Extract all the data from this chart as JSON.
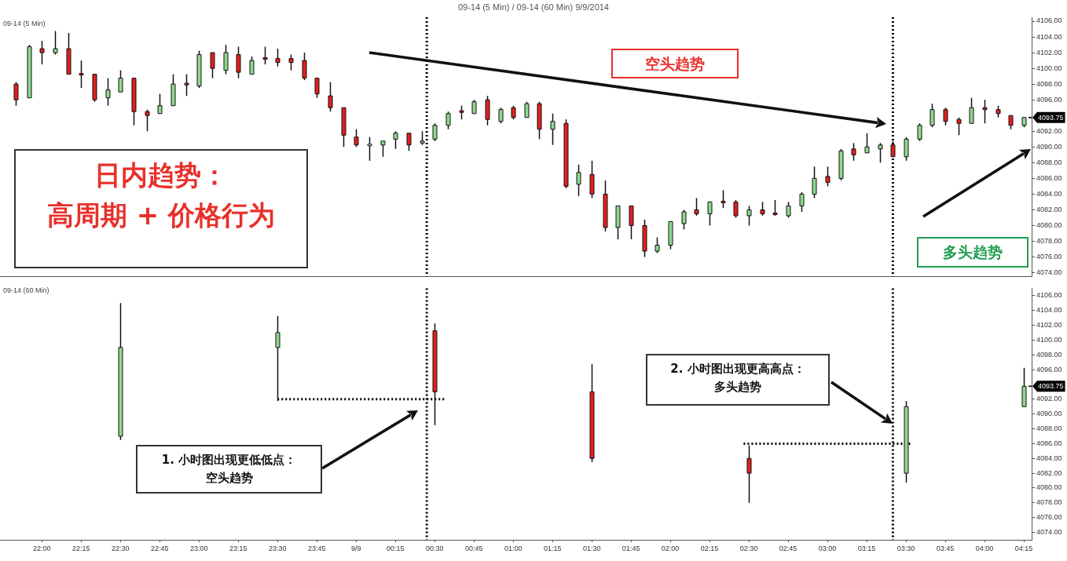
{
  "chart_data": [
    {
      "type": "candlestick",
      "title": "09-14 (5 Min) / 09-14 (60 Min)  9/9/2014",
      "subtitle": "09-14 (5 Min)",
      "xlim": [
        "2014-09-08T21:44",
        "2014-09-09T04:18"
      ],
      "ylim": [
        4073.5,
        4106.5
      ],
      "yticks": [
        {
          "value": 4074,
          "label": "4074.00"
        },
        {
          "value": 4076,
          "label": "4076.00"
        },
        {
          "value": 4078,
          "label": "4078.00"
        },
        {
          "value": 4080,
          "label": "4080.00"
        },
        {
          "value": 4082,
          "label": "4082.00"
        },
        {
          "value": 4084,
          "label": "4084.00"
        },
        {
          "value": 4086,
          "label": "4086.00"
        },
        {
          "value": 4088,
          "label": "4088.00"
        },
        {
          "value": 4090,
          "label": "4090.00"
        },
        {
          "value": 4092,
          "label": "4092.00"
        },
        {
          "value": 4096,
          "label": "4096.00"
        },
        {
          "value": 4098,
          "label": "4098.00"
        },
        {
          "value": 4100,
          "label": "4100.00"
        },
        {
          "value": 4102,
          "label": "4102.00"
        },
        {
          "value": 4104,
          "label": "4104.00"
        },
        {
          "value": 4106,
          "label": "4106.00"
        }
      ],
      "tick_labels": "y",
      "grid": false,
      "legend": false,
      "series": [
        {
          "type": "candlestick",
          "x": [
            "2014-09-08T21:50",
            "2014-09-08T21:55",
            "2014-09-08T22:00",
            "2014-09-08T22:05",
            "2014-09-08T22:10",
            "2014-09-08T22:15",
            "2014-09-08T22:20",
            "2014-09-08T22:25",
            "2014-09-08T22:30",
            "2014-09-08T22:35",
            "2014-09-08T22:40",
            "2014-09-08T22:45",
            "2014-09-08T22:50",
            "2014-09-08T22:55",
            "2014-09-08T23:00",
            "2014-09-08T23:05",
            "2014-09-08T23:10",
            "2014-09-08T23:15",
            "2014-09-08T23:20",
            "2014-09-08T23:25",
            "2014-09-08T23:30",
            "2014-09-08T23:35",
            "2014-09-08T23:40",
            "2014-09-08T23:45",
            "2014-09-08T23:50",
            "2014-09-08T23:55",
            "2014-09-09T00:00",
            "2014-09-09T00:05",
            "2014-09-09T00:10",
            "2014-09-09T00:15",
            "2014-09-09T00:20",
            "2014-09-09T00:25",
            "2014-09-09T00:30",
            "2014-09-09T00:35",
            "2014-09-09T00:40",
            "2014-09-09T00:45",
            "2014-09-09T00:50",
            "2014-09-09T00:55",
            "2014-09-09T01:00",
            "2014-09-09T01:05",
            "2014-09-09T01:10",
            "2014-09-09T01:15",
            "2014-09-09T01:20",
            "2014-09-09T01:25",
            "2014-09-09T01:30",
            "2014-09-09T01:35",
            "2014-09-09T01:40",
            "2014-09-09T01:45",
            "2014-09-09T01:50",
            "2014-09-09T01:55",
            "2014-09-09T02:00",
            "2014-09-09T02:05",
            "2014-09-09T02:10",
            "2014-09-09T02:15",
            "2014-09-09T02:20",
            "2014-09-09T02:25",
            "2014-09-09T02:30",
            "2014-09-09T02:35",
            "2014-09-09T02:40",
            "2014-09-09T02:45",
            "2014-09-09T02:50",
            "2014-09-09T02:55",
            "2014-09-09T03:00",
            "2014-09-09T03:05",
            "2014-09-09T03:10",
            "2014-09-09T03:15",
            "2014-09-09T03:20",
            "2014-09-09T03:25",
            "2014-09-09T03:30",
            "2014-09-09T03:35",
            "2014-09-09T03:40",
            "2014-09-09T03:45",
            "2014-09-09T03:50",
            "2014-09-09T03:55",
            "2014-09-09T04:00",
            "2014-09-09T04:05",
            "2014-09-09T04:10",
            "2014-09-09T04:15"
          ],
          "ohlc": [
            [
              4098,
              4098.25,
              4095.25,
              4096
            ],
            [
              4096.25,
              4103,
              4096.25,
              4102.75
            ],
            [
              4102.5,
              4103.5,
              4100.5,
              4102
            ],
            [
              4102,
              4104.75,
              4101.75,
              4102.5
            ],
            [
              4102.5,
              4104.5,
              4099.25,
              4099.25
            ],
            [
              4099.25,
              4101,
              4097.5,
              4099.25
            ],
            [
              4099.25,
              4099.25,
              4095.75,
              4096
            ],
            [
              4096.25,
              4098.75,
              4095.25,
              4097.25
            ],
            [
              4097,
              4099.75,
              4097,
              4098.75
            ],
            [
              4098.75,
              4098.75,
              4092.75,
              4094.5
            ],
            [
              4094.5,
              4094.75,
              4092,
              4094
            ],
            [
              4094.25,
              4096.75,
              4094.25,
              4095.25
            ],
            [
              4095.25,
              4099.25,
              4095.25,
              4098
            ],
            [
              4098,
              4099.25,
              4096.5,
              4098
            ],
            [
              4097.75,
              4102.25,
              4097.5,
              4101.75
            ],
            [
              4102,
              4102,
              4098.75,
              4100
            ],
            [
              4099.75,
              4103,
              4099.25,
              4102
            ],
            [
              4101.75,
              4102.75,
              4098.75,
              4099.5
            ],
            [
              4099.25,
              4101.5,
              4099.25,
              4101
            ],
            [
              4101.25,
              4102.75,
              4100.5,
              4101.25
            ],
            [
              4101.25,
              4102.5,
              4100.25,
              4100.75
            ],
            [
              4101.25,
              4101.75,
              4099.75,
              4100.75
            ],
            [
              4101,
              4102,
              4098.5,
              4098.75
            ],
            [
              4098.75,
              4098.75,
              4096.25,
              4096.75
            ],
            [
              4096.5,
              4098.25,
              4094.5,
              4095
            ],
            [
              4095,
              4095,
              4090,
              4091.5
            ],
            [
              4091.25,
              4092.25,
              4090,
              4090.25
            ],
            [
              4090.25,
              4091.25,
              4088.25,
              4090.25
            ],
            [
              4090.25,
              4090.75,
              4088.75,
              4090.75
            ],
            [
              4091,
              4092,
              4089.75,
              4091.75
            ],
            [
              4091.75,
              4091.75,
              4089.5,
              4090.25
            ],
            [
              4090.5,
              4092,
              4090.25,
              4090.75
            ],
            [
              4091,
              4093,
              4090.75,
              4092.75
            ],
            [
              4092.75,
              4094.5,
              4092.25,
              4094.25
            ],
            [
              4094.5,
              4095.25,
              4093.5,
              4094.5
            ],
            [
              4094.25,
              4096,
              4094.25,
              4095.75
            ],
            [
              4096,
              4096.5,
              4092.75,
              4093.5
            ],
            [
              4093.25,
              4095,
              4093,
              4094.75
            ],
            [
              4095,
              4095.25,
              4093.5,
              4093.75
            ],
            [
              4093.75,
              4095.75,
              4093.75,
              4095.5
            ],
            [
              4095.5,
              4095.75,
              4091,
              4092.25
            ],
            [
              4092.25,
              4094.25,
              4090.25,
              4093.25
            ],
            [
              4093,
              4093.5,
              4084.75,
              4085
            ],
            [
              4085.25,
              4087.75,
              4083.75,
              4086.75
            ],
            [
              4086.5,
              4088.25,
              4083.5,
              4084
            ],
            [
              4084,
              4085.75,
              4079.25,
              4079.75
            ],
            [
              4079.75,
              4082.5,
              4078.25,
              4082.5
            ],
            [
              4082.5,
              4082.5,
              4078.25,
              4080
            ],
            [
              4080,
              4080.75,
              4076,
              4076.75
            ],
            [
              4076.75,
              4078.5,
              4076.5,
              4077.5
            ],
            [
              4077.5,
              4080.5,
              4077,
              4080.5
            ],
            [
              4080.25,
              4082,
              4079.5,
              4081.75
            ],
            [
              4082,
              4083.5,
              4081.25,
              4081.5
            ],
            [
              4081.5,
              4083,
              4080,
              4083
            ],
            [
              4083,
              4084.5,
              4082.25,
              4083
            ],
            [
              4083,
              4083.25,
              4081,
              4081.25
            ],
            [
              4081.25,
              4082.5,
              4080,
              4082
            ],
            [
              4082,
              4083,
              4081.25,
              4081.5
            ],
            [
              4081.5,
              4083.25,
              4081.25,
              4081.5
            ],
            [
              4081.25,
              4083,
              4081,
              4082.5
            ],
            [
              4082.5,
              4084.25,
              4081.75,
              4084
            ],
            [
              4084,
              4087.5,
              4083.5,
              4086
            ],
            [
              4086.25,
              4087.5,
              4085,
              4085.5
            ],
            [
              4086,
              4089.75,
              4085.75,
              4089.5
            ],
            [
              4089.75,
              4090.5,
              4088.25,
              4089
            ],
            [
              4089.25,
              4091.75,
              4089.25,
              4090
            ],
            [
              4089.75,
              4090.5,
              4088,
              4090.25
            ],
            [
              4090.25,
              4090.75,
              4088.75,
              4088.75
            ],
            [
              4088.75,
              4091.25,
              4088.25,
              4091
            ],
            [
              4091,
              4093,
              4090.75,
              4092.75
            ],
            [
              4092.75,
              4095.5,
              4092.5,
              4094.75
            ],
            [
              4094.75,
              4095,
              4092.75,
              4093.25
            ],
            [
              4093.5,
              4093.75,
              4091.5,
              4093
            ],
            [
              4093,
              4096.25,
              4093,
              4095
            ],
            [
              4095,
              4096,
              4093,
              4094.75
            ],
            [
              4094.75,
              4095.25,
              4093.75,
              4094.25
            ],
            [
              4094,
              4094,
              4092.25,
              4092.75
            ],
            [
              4092.75,
              4093.75,
              4092.5,
              4093.75
            ]
          ],
          "colors": [
            "#e41e1e",
            "#90d890",
            "#e41e1e",
            "#90d890",
            "#e41e1e",
            "#e41e1e",
            "#e41e1e",
            "#90d890",
            "#90d890",
            "#e41e1e",
            "#e41e1e",
            "#90d890",
            "#90d890",
            "#e41e1e",
            "#90d890",
            "#e41e1e",
            "#90d890",
            "#e41e1e",
            "#90d890",
            "#e41e1e",
            "#e41e1e",
            "#e41e1e",
            "#e41e1e",
            "#e41e1e",
            "#e41e1e",
            "#e41e1e",
            "#e41e1e",
            "#ffffff",
            "#90d890",
            "#90d890",
            "#e41e1e",
            "#90d890",
            "#90d890",
            "#90d890",
            "#e41e1e",
            "#90d890",
            "#e41e1e",
            "#90d890",
            "#e41e1e",
            "#90d890",
            "#e41e1e",
            "#90d890",
            "#e41e1e",
            "#90d890",
            "#e41e1e",
            "#e41e1e",
            "#90d890",
            "#e41e1e",
            "#e41e1e",
            "#90d890",
            "#90d890",
            "#90d890",
            "#e41e1e",
            "#90d890",
            "#e41e1e",
            "#e41e1e",
            "#90d890",
            "#e41e1e",
            "#e41e1e",
            "#90d890",
            "#90d890",
            "#90d890",
            "#e41e1e",
            "#90d890",
            "#e41e1e",
            "#90d890",
            "#90d890",
            "#e41e1e",
            "#90d890",
            "#90d890",
            "#90d890",
            "#e41e1e",
            "#e41e1e",
            "#90d890",
            "#e41e1e",
            "#e41e1e",
            "#e41e1e",
            "#90d890"
          ]
        }
      ],
      "ref_lines": [
        {
          "axis": "x",
          "value": "2014-09-09T00:27",
          "line_style": "dotted",
          "color": "#000000"
        },
        {
          "axis": "x",
          "value": "2014-09-09T03:25",
          "line_style": "dotted",
          "color": "#000000"
        }
      ],
      "annotations": [
        "日内趋势：高周期 + 价格行为",
        "空头趋势",
        "多头趋势",
        {
          "text": "4093.75",
          "x": "2014-09-09T04:15",
          "y": 4093.75
        }
      ]
    },
    {
      "type": "candlestick",
      "title": "09-14 (60 Min)",
      "xlim": [
        "2014-09-08T21:44",
        "2014-09-09T04:18"
      ],
      "xticks": [
        {
          "value": "2014-09-08T22:00",
          "label": "22:00"
        },
        {
          "value": "2014-09-08T22:15",
          "label": "22:15"
        },
        {
          "value": "2014-09-08T22:30",
          "label": "22:30"
        },
        {
          "value": "2014-09-08T22:45",
          "label": "22:45"
        },
        {
          "value": "2014-09-08T23:00",
          "label": "23:00"
        },
        {
          "value": "2014-09-08T23:15",
          "label": "23:15"
        },
        {
          "value": "2014-09-08T23:30",
          "label": "23:30"
        },
        {
          "value": "2014-09-08T23:45",
          "label": "23:45"
        },
        {
          "value": "2014-09-09T00:00",
          "label": "9/9"
        },
        {
          "value": "2014-09-09T00:15",
          "label": "00:15"
        },
        {
          "value": "2014-09-09T00:30",
          "label": "00:30"
        },
        {
          "value": "2014-09-09T00:45",
          "label": "00:45"
        },
        {
          "value": "2014-09-09T01:00",
          "label": "01:00"
        },
        {
          "value": "2014-09-09T01:15",
          "label": "01:15"
        },
        {
          "value": "2014-09-09T01:30",
          "label": "01:30"
        },
        {
          "value": "2014-09-09T01:45",
          "label": "01:45"
        },
        {
          "value": "2014-09-09T02:00",
          "label": "02:00"
        },
        {
          "value": "2014-09-09T02:15",
          "label": "02:15"
        },
        {
          "value": "2014-09-09T02:30",
          "label": "02:30"
        },
        {
          "value": "2014-09-09T02:45",
          "label": "02:45"
        },
        {
          "value": "2014-09-09T03:00",
          "label": "03:00"
        },
        {
          "value": "2014-09-09T03:15",
          "label": "03:15"
        },
        {
          "value": "2014-09-09T03:30",
          "label": "03:30"
        },
        {
          "value": "2014-09-09T03:45",
          "label": "03:45"
        },
        {
          "value": "2014-09-09T04:00",
          "label": "04:00"
        },
        {
          "value": "2014-09-09T04:15",
          "label": "04:15"
        }
      ],
      "ylim": [
        4073,
        4107
      ],
      "yticks": [
        {
          "value": 4074,
          "label": "4074.00"
        },
        {
          "value": 4076,
          "label": "4076.00"
        },
        {
          "value": 4078,
          "label": "4078.00"
        },
        {
          "value": 4080,
          "label": "4080.00"
        },
        {
          "value": 4082,
          "label": "4082.00"
        },
        {
          "value": 4084,
          "label": "4084.00"
        },
        {
          "value": 4086,
          "label": "4086.00"
        },
        {
          "value": 4088,
          "label": "4088.00"
        },
        {
          "value": 4090,
          "label": "4090.00"
        },
        {
          "value": 4092,
          "label": "4092.00"
        },
        {
          "value": 4096,
          "label": "4096.00"
        },
        {
          "value": 4098,
          "label": "4098.00"
        },
        {
          "value": 4100,
          "label": "4100.00"
        },
        {
          "value": 4102,
          "label": "4102.00"
        },
        {
          "value": 4104,
          "label": "4104.00"
        },
        {
          "value": 4106,
          "label": "4106.00"
        }
      ],
      "grid": false,
      "legend": false,
      "series": [
        {
          "type": "line",
          "x": [
            "2014-09-08T23:30",
            "2014-09-09T00:34"
          ],
          "values": [
            4092,
            4092
          ],
          "color": "#000000",
          "line_style": "dotted",
          "marker": "none"
        },
        {
          "type": "line",
          "x": [
            "2014-09-09T02:28",
            "2014-09-09T03:32"
          ],
          "values": [
            4086,
            4086
          ],
          "color": "#000000",
          "line_style": "dotted",
          "marker": "none"
        },
        {
          "type": "candlestick",
          "x": [
            "2014-09-08T22:30",
            "2014-09-08T23:30",
            "2014-09-09T00:30",
            "2014-09-09T01:30",
            "2014-09-09T02:30",
            "2014-09-09T03:30",
            "2014-09-09T04:15"
          ],
          "ohlc": [
            [
              4087,
              4105,
              4086.5,
              4099
            ],
            [
              4099,
              4103.25,
              4091.75,
              4101
            ],
            [
              4101.25,
              4102.25,
              4088.5,
              4093
            ],
            [
              4093,
              4096.75,
              4083.5,
              4084
            ],
            [
              4084,
              4085.75,
              4078,
              4082
            ],
            [
              4082,
              4091.75,
              4080.75,
              4091
            ],
            [
              4091,
              4096.25,
              4091,
              4093.75
            ]
          ],
          "colors": [
            "#90d890",
            "#90d890",
            "#e41e1e",
            "#e41e1e",
            "#e41e1e",
            "#90d890",
            "#90d890"
          ]
        }
      ],
      "ref_lines": [
        {
          "axis": "x",
          "value": "2014-09-09T00:27",
          "line_style": "dotted",
          "color": "#000000"
        },
        {
          "axis": "x",
          "value": "2014-09-09T03:25",
          "line_style": "dotted",
          "color": "#000000"
        }
      ],
      "annotations": [
        "1. 小时图出现更低低点：空头趋势",
        "2. 小时图出现更高高点：多头趋势",
        {
          "text": "4093.75",
          "x": "2014-09-09T04:15",
          "y": 4093.75
        }
      ]
    }
  ]
}
